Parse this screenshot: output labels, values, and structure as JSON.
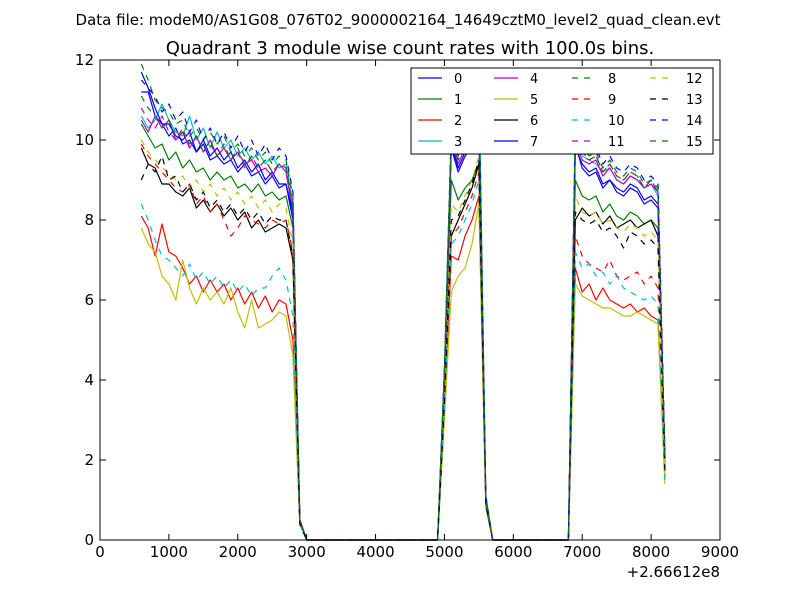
{
  "page": {
    "suptitle": "Data file: modeM0/AS1G08_076T02_9000002164_14649cztM0_level2_quad_clean.evt"
  },
  "chart_data": {
    "type": "line",
    "title": "Quadrant 3 module wise count rates with 100.0s bins.",
    "xlabel": "",
    "ylabel": "",
    "x_offset_label": "+2.66612e8",
    "xlim": [
      0,
      9000
    ],
    "ylim": [
      0,
      12
    ],
    "x_ticks": [
      "0",
      "1000",
      "2000",
      "3000",
      "4000",
      "5000",
      "6000",
      "7000",
      "8000",
      "9000"
    ],
    "y_ticks": [
      "0",
      "2",
      "4",
      "6",
      "8",
      "10",
      "12"
    ],
    "grid": false,
    "legend_position": "top-right",
    "x": [
      600,
      700,
      800,
      900,
      1000,
      1100,
      1200,
      1300,
      1400,
      1500,
      1600,
      1700,
      1800,
      1900,
      2000,
      2100,
      2200,
      2300,
      2400,
      2500,
      2600,
      2700,
      2800,
      2900,
      3000,
      3500,
      4000,
      4500,
      4900,
      5000,
      5100,
      5200,
      5300,
      5400,
      5500,
      5600,
      5700,
      5800,
      6000,
      6500,
      6800,
      6900,
      7000,
      7100,
      7200,
      7300,
      7400,
      7500,
      7600,
      7700,
      7800,
      7900,
      8000,
      8100,
      8200
    ],
    "series": [
      {
        "name": "0",
        "color": "#0000ff",
        "dash": "solid",
        "values": [
          11.2,
          11.2,
          10.6,
          10.4,
          10.1,
          10.3,
          9.9,
          10.0,
          9.7,
          9.9,
          9.5,
          9.6,
          9.4,
          9.5,
          9.2,
          9.4,
          9.1,
          9.2,
          8.9,
          9.1,
          8.8,
          8.9,
          8.0,
          0.5,
          0.0,
          0.0,
          0.0,
          0.0,
          0.0,
          4.0,
          9.8,
          9.2,
          9.6,
          9.8,
          10.2,
          1.0,
          0.0,
          0.0,
          0.0,
          0.0,
          0.0,
          9.8,
          9.4,
          9.2,
          9.3,
          8.9,
          9.0,
          8.8,
          8.7,
          8.9,
          8.8,
          8.5,
          8.6,
          8.4,
          2.0
        ]
      },
      {
        "name": "1",
        "color": "#008000",
        "dash": "solid",
        "values": [
          10.4,
          10.1,
          9.8,
          9.9,
          9.5,
          9.7,
          9.3,
          9.5,
          9.2,
          9.3,
          9.0,
          9.2,
          9.0,
          9.1,
          8.8,
          8.9,
          8.7,
          8.9,
          8.6,
          8.7,
          8.5,
          8.6,
          7.8,
          0.5,
          0.0,
          0.0,
          0.0,
          0.0,
          0.0,
          3.8,
          9.0,
          8.5,
          8.8,
          9.0,
          9.4,
          1.0,
          0.0,
          0.0,
          0.0,
          0.0,
          0.0,
          9.0,
          8.6,
          8.5,
          8.6,
          8.2,
          8.4,
          8.1,
          8.0,
          8.2,
          8.1,
          7.9,
          8.0,
          7.8,
          1.9
        ]
      },
      {
        "name": "2",
        "color": "#ff0000",
        "dash": "solid",
        "values": [
          8.1,
          7.8,
          7.1,
          7.9,
          7.2,
          7.1,
          6.8,
          6.4,
          6.6,
          6.2,
          6.5,
          6.2,
          6.4,
          6.0,
          6.3,
          5.9,
          6.2,
          5.8,
          6.1,
          5.7,
          6.0,
          5.9,
          5.0,
          0.4,
          0.0,
          0.0,
          0.0,
          0.0,
          0.0,
          3.2,
          7.1,
          7.0,
          7.6,
          8.0,
          8.6,
          0.9,
          0.0,
          0.0,
          0.0,
          0.0,
          0.0,
          6.8,
          6.2,
          6.4,
          6.0,
          6.3,
          6.0,
          5.9,
          5.8,
          5.9,
          5.7,
          5.8,
          5.6,
          5.5,
          1.5
        ]
      },
      {
        "name": "3",
        "color": "#00bfbf",
        "dash": "solid",
        "values": [
          10.6,
          10.3,
          10.5,
          10.9,
          10.5,
          10.2,
          10.1,
          10.6,
          10.0,
          10.3,
          9.8,
          10.2,
          9.8,
          10.0,
          9.6,
          9.8,
          9.5,
          9.7,
          9.4,
          9.6,
          9.3,
          9.4,
          8.4,
          0.5,
          0.0,
          0.0,
          0.0,
          0.0,
          0.0,
          4.2,
          10.2,
          9.8,
          10.5,
          11.0,
          11.8,
          1.1,
          0.0,
          0.0,
          0.0,
          0.0,
          0.0,
          10.2,
          9.6,
          9.5,
          9.4,
          9.2,
          9.3,
          9.0,
          8.9,
          9.1,
          9.0,
          8.8,
          8.9,
          8.6,
          2.1
        ]
      },
      {
        "name": "4",
        "color": "#bf00bf",
        "dash": "solid",
        "values": [
          10.5,
          10.2,
          10.6,
          10.3,
          10.5,
          10.0,
          10.2,
          9.8,
          10.1,
          9.7,
          10.0,
          9.6,
          9.8,
          9.5,
          9.7,
          9.4,
          9.5,
          9.2,
          9.3,
          9.1,
          9.4,
          9.2,
          8.2,
          0.5,
          0.0,
          0.0,
          0.0,
          0.0,
          0.0,
          4.0,
          9.9,
          9.4,
          9.8,
          10.2,
          10.8,
          1.0,
          0.0,
          0.0,
          0.0,
          0.0,
          0.0,
          9.9,
          9.5,
          9.4,
          9.5,
          9.1,
          9.3,
          9.0,
          8.9,
          9.1,
          9.0,
          8.8,
          8.9,
          8.7,
          2.0
        ]
      },
      {
        "name": "5",
        "color": "#bfbf00",
        "dash": "solid",
        "values": [
          7.8,
          7.4,
          7.2,
          6.6,
          6.4,
          6.0,
          7.0,
          6.3,
          5.9,
          6.3,
          6.0,
          6.2,
          5.9,
          6.3,
          5.7,
          5.3,
          6.0,
          5.3,
          5.4,
          5.5,
          5.7,
          5.6,
          4.6,
          0.4,
          0.0,
          0.0,
          0.0,
          0.0,
          0.0,
          3.0,
          6.2,
          6.6,
          6.8,
          7.4,
          8.4,
          0.8,
          0.0,
          0.0,
          0.0,
          0.0,
          0.0,
          6.4,
          6.1,
          6.0,
          5.9,
          5.8,
          5.8,
          5.7,
          5.6,
          5.6,
          5.7,
          5.6,
          5.5,
          5.4,
          1.4
        ]
      },
      {
        "name": "6",
        "color": "#000000",
        "dash": "solid",
        "values": [
          9.8,
          9.4,
          9.3,
          8.9,
          8.9,
          8.7,
          8.6,
          8.8,
          8.3,
          8.5,
          8.2,
          8.4,
          8.1,
          8.3,
          8.0,
          8.2,
          7.8,
          8.0,
          7.7,
          7.8,
          7.9,
          7.8,
          7.0,
          0.5,
          0.0,
          0.0,
          0.0,
          0.0,
          0.0,
          3.6,
          7.6,
          8.0,
          8.4,
          8.8,
          9.4,
          0.9,
          0.0,
          0.0,
          0.0,
          0.0,
          0.0,
          8.0,
          8.3,
          8.1,
          8.2,
          7.9,
          8.1,
          7.8,
          7.9,
          8.0,
          7.8,
          7.9,
          8.0,
          7.6,
          1.8
        ]
      },
      {
        "name": "7",
        "color": "#0000ff",
        "dash": "solid",
        "values": [
          11.7,
          11.3,
          10.8,
          10.4,
          10.4,
          10.1,
          10.0,
          10.2,
          9.7,
          10.0,
          9.6,
          9.8,
          9.5,
          9.7,
          9.3,
          9.5,
          9.2,
          9.4,
          9.0,
          9.2,
          8.9,
          8.9,
          8.2,
          0.5,
          0.0,
          0.0,
          0.0,
          0.0,
          0.0,
          4.1,
          9.9,
          9.3,
          9.7,
          10.0,
          10.4,
          1.0,
          0.0,
          0.0,
          0.0,
          0.0,
          0.0,
          9.9,
          9.3,
          9.1,
          9.2,
          8.8,
          9.0,
          8.7,
          8.6,
          8.8,
          8.7,
          8.4,
          8.5,
          8.3,
          2.0
        ]
      },
      {
        "name": "8",
        "color": "#008000",
        "dash": "dashed",
        "values": [
          11.9,
          11.5,
          11.0,
          10.8,
          10.7,
          10.4,
          10.5,
          10.1,
          10.3,
          10.0,
          10.2,
          9.9,
          10.1,
          9.7,
          9.9,
          9.6,
          9.8,
          9.5,
          9.7,
          9.4,
          9.6,
          9.5,
          8.6,
          0.5,
          0.0,
          0.0,
          0.0,
          0.0,
          0.0,
          4.3,
          10.1,
          9.6,
          10.0,
          10.3,
          10.9,
          1.1,
          0.0,
          0.0,
          0.0,
          0.0,
          0.0,
          10.4,
          9.8,
          9.6,
          9.7,
          9.3,
          9.5,
          9.2,
          9.1,
          9.3,
          9.2,
          8.9,
          9.0,
          8.8,
          2.1
        ]
      },
      {
        "name": "9",
        "color": "#ff0000",
        "dash": "dashed",
        "values": [
          9.9,
          9.6,
          9.4,
          9.2,
          9.0,
          8.8,
          8.7,
          8.9,
          8.4,
          8.6,
          8.2,
          8.4,
          8.0,
          7.6,
          7.8,
          8.1,
          8.0,
          7.9,
          7.8,
          8.0,
          7.9,
          8.0,
          7.2,
          0.4,
          0.0,
          0.0,
          0.0,
          0.0,
          0.0,
          3.4,
          7.6,
          7.8,
          8.2,
          8.6,
          9.2,
          0.9,
          0.0,
          0.0,
          0.0,
          0.0,
          0.0,
          7.6,
          7.1,
          6.9,
          6.8,
          6.7,
          7.0,
          6.6,
          6.5,
          6.6,
          6.7,
          6.4,
          6.6,
          6.3,
          1.6
        ]
      },
      {
        "name": "10",
        "color": "#00bfbf",
        "dash": "dashed",
        "values": [
          8.4,
          8.0,
          7.5,
          7.1,
          7.0,
          6.8,
          6.6,
          6.9,
          6.5,
          6.7,
          6.4,
          6.6,
          6.3,
          6.5,
          6.2,
          6.4,
          6.1,
          6.3,
          6.3,
          6.6,
          6.8,
          6.5,
          5.6,
          0.4,
          0.0,
          0.0,
          0.0,
          0.0,
          0.0,
          3.3,
          7.4,
          7.6,
          8.0,
          8.4,
          9.0,
          0.9,
          0.0,
          0.0,
          0.0,
          0.0,
          0.0,
          7.2,
          6.8,
          6.9,
          6.6,
          6.7,
          6.4,
          6.6,
          6.3,
          6.2,
          6.1,
          6.0,
          6.1,
          5.9,
          1.5
        ]
      },
      {
        "name": "11",
        "color": "#bf00bf",
        "dash": "dashed",
        "values": [
          10.8,
          10.5,
          10.3,
          10.6,
          10.2,
          10.0,
          10.3,
          9.8,
          10.1,
          9.7,
          9.9,
          9.6,
          9.8,
          9.5,
          9.7,
          9.3,
          9.6,
          9.3,
          9.5,
          9.2,
          9.4,
          9.3,
          8.3,
          0.5,
          0.0,
          0.0,
          0.0,
          0.0,
          0.0,
          4.1,
          10.0,
          9.5,
          9.9,
          10.3,
          10.9,
          1.0,
          0.0,
          0.0,
          0.0,
          0.0,
          0.0,
          10.1,
          9.6,
          9.5,
          9.6,
          9.2,
          9.4,
          9.1,
          9.0,
          9.2,
          9.1,
          8.8,
          9.0,
          8.7,
          2.0
        ]
      },
      {
        "name": "12",
        "color": "#bfbf00",
        "dash": "dashed",
        "values": [
          10.0,
          9.7,
          9.5,
          9.3,
          9.2,
          9.0,
          9.1,
          8.8,
          9.0,
          8.7,
          8.9,
          8.6,
          8.8,
          8.5,
          8.7,
          8.4,
          8.6,
          8.3,
          8.5,
          8.2,
          8.4,
          8.3,
          7.4,
          0.4,
          0.0,
          0.0,
          0.0,
          0.0,
          0.0,
          3.5,
          8.4,
          8.2,
          8.6,
          9.0,
          9.6,
          0.9,
          0.0,
          0.0,
          0.0,
          0.0,
          0.0,
          8.6,
          8.2,
          8.1,
          8.2,
          7.9,
          8.0,
          7.8,
          7.7,
          7.9,
          7.8,
          7.6,
          7.7,
          7.5,
          1.7
        ]
      },
      {
        "name": "13",
        "color": "#000000",
        "dash": "dashed",
        "values": [
          9.0,
          9.4,
          9.2,
          9.6,
          9.0,
          9.1,
          8.7,
          8.9,
          8.5,
          8.7,
          8.3,
          8.5,
          8.2,
          8.4,
          8.1,
          8.3,
          8.0,
          8.2,
          7.9,
          8.1,
          8.0,
          8.0,
          7.1,
          0.4,
          0.0,
          0.0,
          0.0,
          0.0,
          0.0,
          3.4,
          8.0,
          8.1,
          8.5,
          8.9,
          9.5,
          0.9,
          0.0,
          0.0,
          0.0,
          0.0,
          0.0,
          8.2,
          8.0,
          7.9,
          8.0,
          7.7,
          7.8,
          7.6,
          7.3,
          7.7,
          7.6,
          7.4,
          7.5,
          7.3,
          1.7
        ]
      },
      {
        "name": "14",
        "color": "#0000ff",
        "dash": "dashed",
        "values": [
          11.5,
          11.3,
          11.1,
          10.7,
          10.9,
          10.5,
          10.7,
          10.2,
          10.5,
          10.0,
          10.3,
          9.9,
          10.2,
          9.8,
          10.1,
          9.7,
          10.0,
          9.6,
          9.9,
          9.5,
          9.8,
          9.6,
          8.7,
          0.5,
          0.0,
          0.0,
          0.0,
          0.0,
          0.0,
          4.3,
          10.3,
          9.8,
          10.2,
          10.6,
          11.2,
          1.1,
          0.0,
          0.0,
          0.0,
          0.0,
          0.0,
          10.5,
          9.9,
          9.7,
          9.8,
          9.4,
          9.6,
          9.3,
          9.2,
          9.4,
          9.3,
          9.0,
          9.1,
          8.9,
          2.2
        ]
      },
      {
        "name": "15",
        "color": "#008000",
        "dash": "dashed",
        "values": [
          11.1,
          10.8,
          10.6,
          10.3,
          10.5,
          10.1,
          10.2,
          9.9,
          10.1,
          9.7,
          10.0,
          9.6,
          9.9,
          9.5,
          9.8,
          9.4,
          9.6,
          9.3,
          9.5,
          9.2,
          9.4,
          9.3,
          8.4,
          0.5,
          0.0,
          0.0,
          0.0,
          0.0,
          0.0,
          4.2,
          10.0,
          9.5,
          9.9,
          10.2,
          10.8,
          1.0,
          0.0,
          0.0,
          0.0,
          0.0,
          0.0,
          10.2,
          9.7,
          9.5,
          9.6,
          9.2,
          9.4,
          9.1,
          9.0,
          9.2,
          9.1,
          8.8,
          9.0,
          8.7,
          2.0
        ]
      }
    ]
  }
}
